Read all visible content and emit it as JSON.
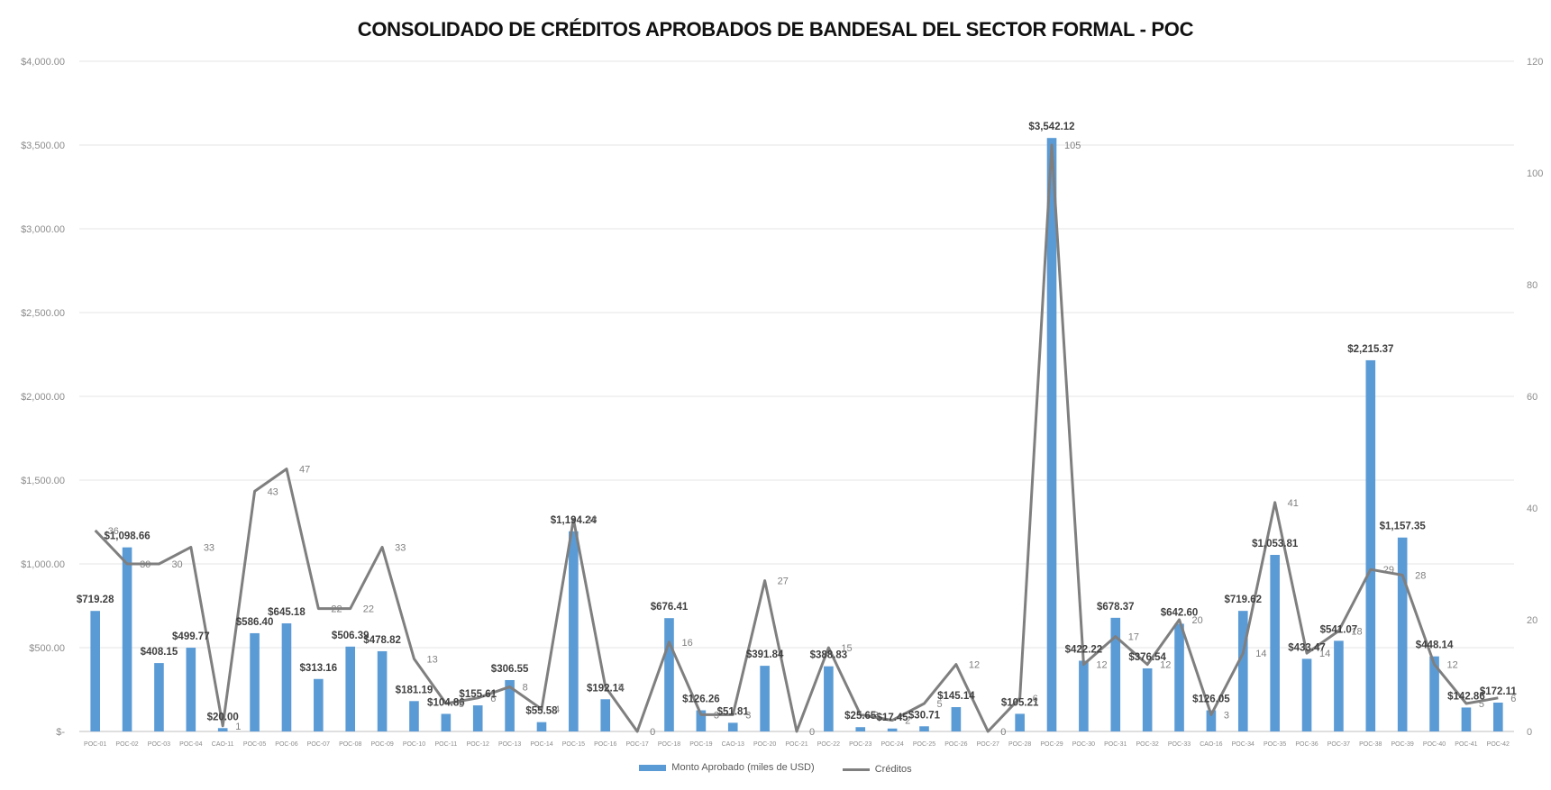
{
  "chart_data": {
    "type": "bar",
    "title": "CONSOLIDADO DE CRÉDITOS APROBADOS DE BANDESAL DEL SECTOR FORMAL - POC",
    "categories": [
      "POC-01",
      "POC-02",
      "POC-03",
      "POC-04",
      "CAO-11",
      "POC-05",
      "POC-06",
      "POC-07",
      "POC-08",
      "POC-09",
      "POC-10",
      "POC-11",
      "POC-12",
      "POC-13",
      "POC-14",
      "POC-15",
      "POC-16",
      "POC-17",
      "POC-18",
      "POC-19",
      "CAO-13",
      "POC-20",
      "POC-21",
      "POC-22",
      "POC-23",
      "POC-24",
      "POC-25",
      "POC-26",
      "POC-27",
      "POC-28",
      "POC-29",
      "POC-30",
      "POC-31",
      "POC-32",
      "POC-33",
      "CAO-16",
      "POC-34",
      "POC-35",
      "POC-36",
      "POC-37",
      "POC-38",
      "POC-39",
      "POC-40",
      "POC-41",
      "POC-42"
    ],
    "series": [
      {
        "name": "Monto Aprobado (miles de USD)",
        "kind": "bar",
        "axis": "left",
        "color": "#5B9BD5",
        "values": [
          719.28,
          1098.66,
          408.15,
          499.77,
          20.0,
          586.4,
          645.18,
          313.16,
          506.39,
          478.82,
          181.19,
          104.86,
          155.61,
          306.55,
          55.58,
          1194.24,
          192.14,
          0,
          676.41,
          126.26,
          51.81,
          391.84,
          0,
          388.83,
          25.65,
          17.45,
          30.71,
          145.14,
          0,
          105.21,
          3542.12,
          422.22,
          678.37,
          376.54,
          642.6,
          126.05,
          719.62,
          1053.81,
          433.47,
          541.07,
          2215.37,
          1157.35,
          448.14,
          142.86,
          172.11
        ],
        "labels": [
          "$719.28",
          "$1,098.66",
          "$408.15",
          "$499.77",
          "$20.00",
          "$586.40",
          "$645.18",
          "$313.16",
          "$506.39",
          "$478.82",
          "$181.19",
          "$104.86",
          "$155.61",
          "$306.55",
          "$55.58",
          "$1,194.24",
          "$192.14",
          "",
          "$676.41",
          "$126.26",
          "$51.81",
          "$391.84",
          "",
          "$388.83",
          "$25.65",
          "$17.45",
          "$30.71",
          "$145.14",
          "",
          "$105.21",
          "$3,542.12",
          "$422.22",
          "$678.37",
          "$376.54",
          "$642.60",
          "$126.05",
          "$719.62",
          "$1,053.81",
          "$433.47",
          "$541.07",
          "$2,215.37",
          "$1,157.35",
          "$448.14",
          "$142.86",
          "$172.11"
        ]
      },
      {
        "name": "Créditos",
        "kind": "line",
        "axis": "right",
        "color": "#7F7F7F",
        "values": [
          36,
          30,
          30,
          33,
          1,
          43,
          47,
          22,
          22,
          33,
          13,
          5,
          6,
          8,
          4,
          38,
          8,
          0,
          16,
          3,
          3,
          27,
          0,
          15,
          3,
          2,
          5,
          12,
          0,
          6,
          105,
          12,
          17,
          12,
          20,
          3,
          14,
          41,
          14,
          18,
          29,
          28,
          12,
          5,
          6
        ],
        "labels": [
          "36",
          "30",
          "30",
          "33",
          "1",
          "43",
          "47",
          "22",
          "22",
          "33",
          "13",
          "5",
          "6",
          "8",
          "4",
          "38",
          "8",
          "0",
          "16",
          "3",
          "3",
          "27",
          "0",
          "15",
          "3",
          "2",
          "5",
          "12",
          "0",
          "6",
          "105",
          "12",
          "17",
          "12",
          "20",
          "3",
          "14",
          "41",
          "14",
          "18",
          "29",
          "28",
          "12",
          "5",
          "6"
        ]
      }
    ],
    "y_left": {
      "lim": [
        0,
        4000
      ],
      "ticks": [
        0,
        500,
        1000,
        1500,
        2000,
        2500,
        3000,
        3500,
        4000
      ],
      "tick_labels": [
        "$-",
        "$500.00",
        "$1,000.00",
        "$1,500.00",
        "$2,000.00",
        "$2,500.00",
        "$3,000.00",
        "$3,500.00",
        "$4,000.00"
      ]
    },
    "y_right": {
      "lim": [
        0,
        120
      ],
      "ticks": [
        0,
        20,
        40,
        60,
        80,
        100,
        120
      ],
      "tick_labels": [
        "0",
        "20",
        "40",
        "60",
        "80",
        "100",
        "120"
      ]
    },
    "grid": true,
    "legend": "bottom-center"
  }
}
